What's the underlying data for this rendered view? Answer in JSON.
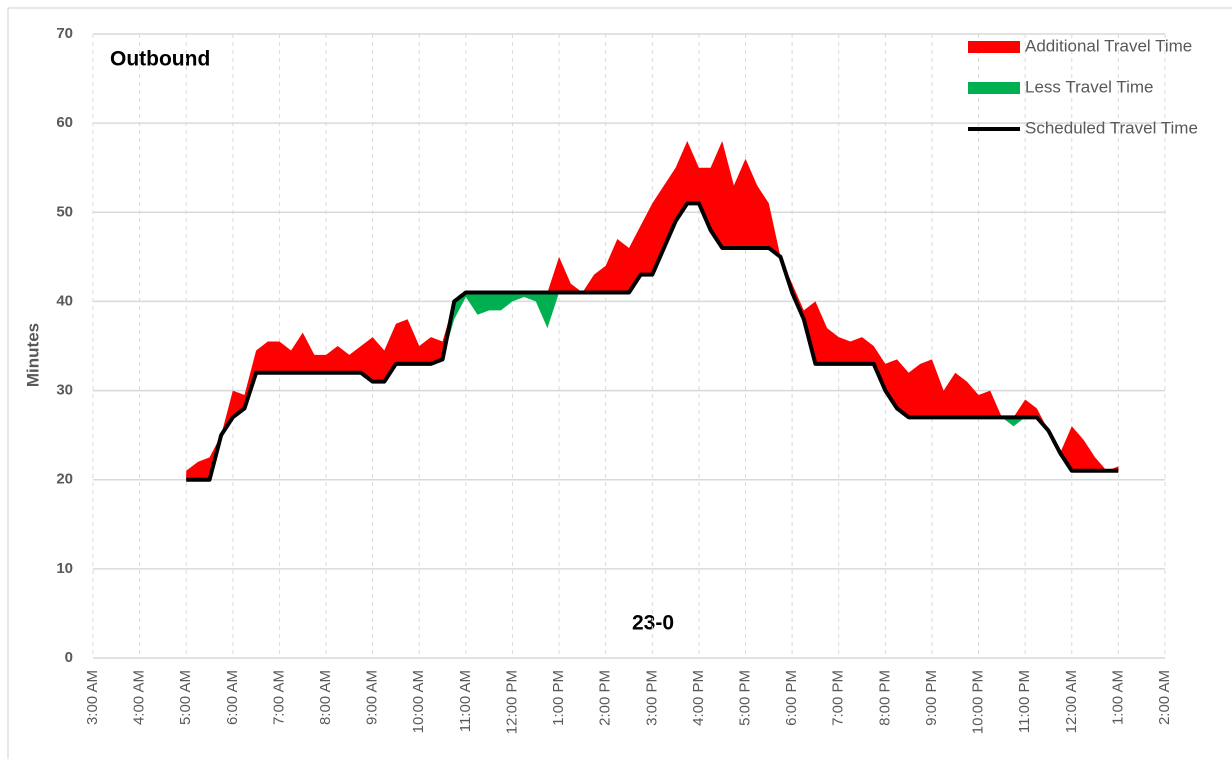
{
  "chart_data": {
    "type": "travel-time-area",
    "title": "Outbound",
    "annotation": "23-0",
    "y_label": "Minutes",
    "x": [
      5.0,
      5.25,
      5.5,
      5.75,
      6.0,
      6.25,
      6.5,
      6.75,
      7.0,
      7.25,
      7.5,
      7.75,
      8.0,
      8.25,
      8.5,
      8.75,
      9.0,
      9.25,
      9.5,
      9.75,
      10.0,
      10.25,
      10.5,
      10.75,
      11.0,
      11.25,
      11.5,
      11.75,
      12.0,
      12.25,
      12.5,
      12.75,
      13.0,
      13.25,
      13.5,
      13.75,
      14.0,
      14.25,
      14.5,
      14.75,
      15.0,
      15.25,
      15.5,
      15.75,
      16.0,
      16.25,
      16.5,
      16.75,
      17.0,
      17.25,
      17.5,
      17.75,
      18.0,
      18.25,
      18.5,
      18.75,
      19.0,
      19.25,
      19.5,
      19.75,
      20.0,
      20.25,
      20.5,
      20.75,
      21.0,
      21.25,
      21.5,
      21.75,
      22.0,
      22.25,
      22.5,
      22.75,
      23.0,
      23.25,
      23.5,
      23.75,
      24.0,
      24.25,
      24.5,
      24.75,
      25.0
    ],
    "series": [
      {
        "name": "Additional Travel Time",
        "color": "#ff0000",
        "values": [
          1,
          2,
          2.5,
          0,
          3,
          1.5,
          2.5,
          3.5,
          3.5,
          2.5,
          4.5,
          2,
          2,
          3,
          2,
          3,
          5,
          3.5,
          4.5,
          5,
          2,
          3,
          2,
          0,
          0,
          0,
          0,
          0,
          0,
          0,
          0,
          0,
          4,
          1,
          0,
          2,
          3,
          6,
          5,
          5.5,
          8,
          7,
          6,
          7,
          4,
          7,
          12,
          7,
          10,
          7,
          5,
          0,
          1,
          1,
          7,
          4,
          3,
          2.5,
          3,
          2,
          3,
          5.5,
          5,
          6,
          6.5,
          3,
          5,
          4,
          2.5,
          3,
          0,
          0,
          2,
          1,
          0,
          0,
          5,
          3.5,
          1.5,
          0,
          0.5
        ]
      },
      {
        "name": "Less Travel Time",
        "color": "#00b050",
        "values": [
          0,
          0,
          0,
          0,
          0,
          0,
          0,
          0,
          0,
          0,
          0,
          0,
          0,
          0,
          0,
          0,
          0,
          0,
          0,
          0,
          0,
          0,
          0,
          2,
          0.5,
          2.5,
          2,
          2,
          1,
          0.5,
          1,
          4,
          0,
          0,
          0,
          0,
          0,
          0,
          0,
          0,
          0,
          0,
          0,
          0,
          0,
          0,
          0,
          0,
          0,
          0,
          0,
          0,
          0,
          0,
          0,
          0,
          0,
          0,
          0,
          0,
          0,
          0,
          0,
          0,
          0,
          0,
          0,
          0,
          0,
          0,
          0,
          1,
          0,
          0,
          0,
          0,
          0,
          0,
          0,
          0,
          0
        ]
      },
      {
        "name": "Scheduled Travel Time",
        "color": "#000000",
        "values": [
          20,
          20,
          20,
          25,
          27,
          28,
          32,
          32,
          32,
          32,
          32,
          32,
          32,
          32,
          32,
          32,
          31,
          31,
          33,
          33,
          33,
          33,
          33.5,
          40,
          41,
          41,
          41,
          41,
          41,
          41,
          41,
          41,
          41,
          41,
          41,
          41,
          41,
          41,
          41,
          43,
          43,
          46,
          49,
          51,
          51,
          48,
          46,
          46,
          46,
          46,
          46,
          45,
          41,
          38,
          33,
          33,
          33,
          33,
          33,
          33,
          30,
          28,
          27,
          27,
          27,
          27,
          27,
          27,
          27,
          27,
          27,
          27,
          27,
          27,
          25.5,
          23,
          21,
          21,
          21,
          21,
          21
        ]
      }
    ],
    "xlim": [
      3,
      26
    ],
    "xticks": [
      {
        "value": 3,
        "label": "3:00 AM"
      },
      {
        "value": 4,
        "label": "4:00 AM"
      },
      {
        "value": 5,
        "label": "5:00 AM"
      },
      {
        "value": 6,
        "label": "6:00 AM"
      },
      {
        "value": 7,
        "label": "7:00 AM"
      },
      {
        "value": 8,
        "label": "8:00 AM"
      },
      {
        "value": 9,
        "label": "9:00 AM"
      },
      {
        "value": 10,
        "label": "10:00 AM"
      },
      {
        "value": 11,
        "label": "11:00 AM"
      },
      {
        "value": 12,
        "label": "12:00 PM"
      },
      {
        "value": 13,
        "label": "1:00 PM"
      },
      {
        "value": 14,
        "label": "2:00 PM"
      },
      {
        "value": 15,
        "label": "3:00 PM"
      },
      {
        "value": 16,
        "label": "4:00 PM"
      },
      {
        "value": 17,
        "label": "5:00 PM"
      },
      {
        "value": 18,
        "label": "6:00 PM"
      },
      {
        "value": 19,
        "label": "7:00 PM"
      },
      {
        "value": 20,
        "label": "8:00 PM"
      },
      {
        "value": 21,
        "label": "9:00 PM"
      },
      {
        "value": 22,
        "label": "10:00 PM"
      },
      {
        "value": 23,
        "label": "11:00 PM"
      },
      {
        "value": 24,
        "label": "12:00 AM"
      },
      {
        "value": 25,
        "label": "1:00 AM"
      },
      {
        "value": 26,
        "label": "2:00 AM"
      }
    ],
    "ylim": [
      0,
      70
    ],
    "yticks": [
      0,
      10,
      20,
      30,
      40,
      50,
      60,
      70
    ],
    "grid": true,
    "legend": "top-right"
  }
}
